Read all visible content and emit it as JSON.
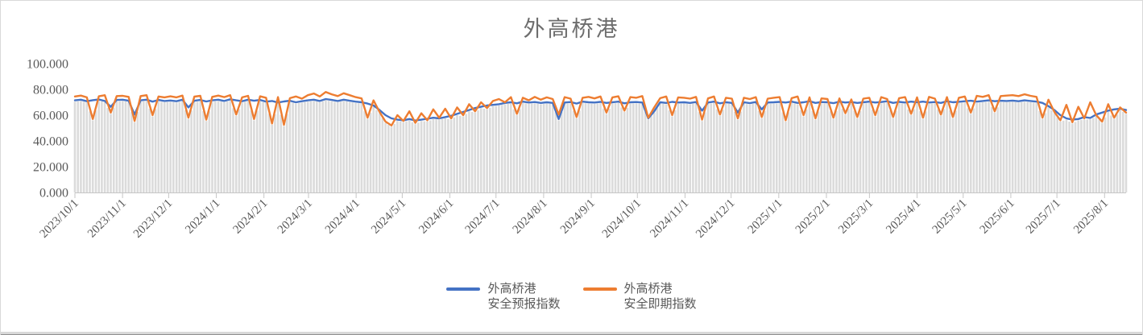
{
  "chart_data": {
    "type": "line",
    "title": "外高桥港",
    "legend_position": "bottom",
    "grid": false,
    "colors": {
      "forecast_line": "#4472C4",
      "spot_line": "#ED7D31",
      "drop_lines": "#DBDBDB",
      "axis": "#C6C6C6",
      "labels": "#595959",
      "title": "#6D6D6D",
      "border": "#D9D9D9"
    },
    "y_axis": {
      "min": 0,
      "max": 100,
      "ticks": [
        {
          "v": 0,
          "label": "0.000"
        },
        {
          "v": 20,
          "label": "20.000"
        },
        {
          "v": 40,
          "label": "40.000"
        },
        {
          "v": 60,
          "label": "60.000"
        },
        {
          "v": 80,
          "label": "80.000"
        },
        {
          "v": 100,
          "label": "100.000"
        }
      ]
    },
    "x_axis": {
      "start_label": "2023/10/1",
      "end_day": 684,
      "ticks": [
        {
          "day": 0,
          "label": "2023/10/1"
        },
        {
          "day": 31,
          "label": "2023/11/1"
        },
        {
          "day": 61,
          "label": "2023/12/1"
        },
        {
          "day": 92,
          "label": "2024/1/1"
        },
        {
          "day": 123,
          "label": "2024/2/1"
        },
        {
          "day": 152,
          "label": "2024/3/1"
        },
        {
          "day": 183,
          "label": "2024/4/1"
        },
        {
          "day": 213,
          "label": "2024/5/1"
        },
        {
          "day": 244,
          "label": "2024/6/1"
        },
        {
          "day": 274,
          "label": "2024/7/1"
        },
        {
          "day": 305,
          "label": "2024/8/1"
        },
        {
          "day": 336,
          "label": "2024/9/1"
        },
        {
          "day": 366,
          "label": "2024/10/1"
        },
        {
          "day": 397,
          "label": "2024/11/1"
        },
        {
          "day": 427,
          "label": "2024/12/1"
        },
        {
          "day": 458,
          "label": "2025/1/1"
        },
        {
          "day": 489,
          "label": "2025/2/1"
        },
        {
          "day": 517,
          "label": "2025/3/1"
        },
        {
          "day": 548,
          "label": "2025/4/1"
        },
        {
          "day": 578,
          "label": "2025/5/1"
        },
        {
          "day": 609,
          "label": "2025/6/1"
        },
        {
          "day": 639,
          "label": "2025/7/1"
        },
        {
          "day": 670,
          "label": "2025/8/1"
        }
      ]
    },
    "series": [
      {
        "name": "外高桥港安全预报指数",
        "legend_line1": "外高桥港",
        "legend_line2": "安全预报指数",
        "color": "#4472C4",
        "values": [
          71.5,
          72.0,
          70.8,
          71.6,
          72.2,
          71.0,
          66.5,
          71.8,
          72.0,
          71.2,
          60.5,
          71.5,
          72.0,
          70.5,
          71.8,
          71.0,
          71.4,
          70.8,
          72.0,
          66.0,
          71.2,
          71.8,
          70.6,
          71.5,
          72.0,
          71.0,
          72.3,
          71.5,
          70.8,
          72.0,
          71.2,
          71.8,
          70.5,
          71.0,
          69.8,
          70.6,
          71.2,
          70.0,
          70.8,
          71.5,
          72.0,
          71.0,
          72.5,
          71.8,
          71.0,
          72.0,
          71.2,
          70.5,
          70.0,
          69.0,
          67.5,
          64.0,
          60.0,
          57.5,
          56.5,
          56.0,
          57.0,
          55.8,
          56.5,
          57.2,
          58.0,
          57.5,
          58.5,
          59.5,
          61.0,
          62.5,
          64.0,
          65.5,
          66.5,
          67.5,
          68.0,
          68.5,
          69.5,
          70.0,
          69.2,
          70.5,
          69.8,
          70.2,
          69.5,
          70.0,
          69.5,
          57.0,
          69.8,
          70.2,
          69.0,
          70.5,
          70.0,
          69.8,
          70.3,
          69.5,
          70.0,
          70.5,
          69.2,
          70.0,
          70.2,
          69.8,
          57.5,
          63.0,
          70.0,
          69.5,
          70.3,
          69.8,
          70.0,
          69.5,
          70.2,
          63.5,
          69.8,
          70.5,
          69.2,
          70.0,
          69.5,
          62.0,
          70.0,
          69.3,
          70.2,
          64.5,
          69.8,
          70.0,
          70.3,
          69.8,
          70.5,
          69.5,
          70.0,
          70.8,
          69.5,
          70.2,
          70.0,
          69.3,
          70.5,
          69.8,
          70.2,
          69.5,
          70.0,
          70.5,
          69.8,
          70.2,
          70.8,
          69.5,
          70.3,
          69.8,
          70.5,
          70.0,
          70.5,
          69.8,
          70.2,
          69.5,
          70.8,
          70.0,
          70.4,
          70.8,
          71.2,
          70.5,
          71.0,
          71.5,
          70.8,
          71.2,
          71.0,
          71.3,
          70.8,
          71.5,
          71.0,
          70.5,
          69.5,
          67.0,
          64.0,
          60.0,
          57.5,
          56.5,
          57.0,
          58.5,
          57.8,
          60.5,
          62.0,
          63.5,
          64.5,
          65.0,
          64.0
        ]
      },
      {
        "name": "外高桥港安全即期指数",
        "legend_line1": "外高桥港",
        "legend_line2": "安全即期指数",
        "color": "#ED7D31",
        "values": [
          74.5,
          75.2,
          73.8,
          57.0,
          74.6,
          75.5,
          62.0,
          74.8,
          75.0,
          74.2,
          55.5,
          74.8,
          75.5,
          60.0,
          74.5,
          73.8,
          74.6,
          73.8,
          75.2,
          58.0,
          74.4,
          75.0,
          56.5,
          74.2,
          75.2,
          74.0,
          75.5,
          60.5,
          73.8,
          75.0,
          57.0,
          74.6,
          73.5,
          53.5,
          74.0,
          52.5,
          73.2,
          74.5,
          72.8,
          75.5,
          76.8,
          74.5,
          78.0,
          76.2,
          74.8,
          77.0,
          75.5,
          74.0,
          73.0,
          58.0,
          71.5,
          62.5,
          55.0,
          52.0,
          60.0,
          55.5,
          63.0,
          54.0,
          61.5,
          56.0,
          64.5,
          58.0,
          65.0,
          57.5,
          66.0,
          60.0,
          68.5,
          63.0,
          70.0,
          65.5,
          71.0,
          72.5,
          70.0,
          74.0,
          61.0,
          73.5,
          71.5,
          74.2,
          72.0,
          73.8,
          72.5,
          60.5,
          74.0,
          72.8,
          58.5,
          73.5,
          74.2,
          73.0,
          74.5,
          62.0,
          73.8,
          74.6,
          63.5,
          74.0,
          73.5,
          74.8,
          58.0,
          66.0,
          73.2,
          74.5,
          60.0,
          73.8,
          73.5,
          72.8,
          74.2,
          56.5,
          73.0,
          74.5,
          60.5,
          73.5,
          72.8,
          57.5,
          73.5,
          72.5,
          74.0,
          58.5,
          72.8,
          73.5,
          74.0,
          56.0,
          73.2,
          74.5,
          60.0,
          73.8,
          57.5,
          73.0,
          72.5,
          58.0,
          73.0,
          61.5,
          72.2,
          58.5,
          72.8,
          73.5,
          60.0,
          74.0,
          72.5,
          58.5,
          73.2,
          74.0,
          61.0,
          73.8,
          58.0,
          74.2,
          72.8,
          60.5,
          74.0,
          58.5,
          73.5,
          74.5,
          62.0,
          75.0,
          74.2,
          75.5,
          63.0,
          74.8,
          75.2,
          75.5,
          74.8,
          76.2,
          75.0,
          74.2,
          58.0,
          72.0,
          62.5,
          56.0,
          68.0,
          54.5,
          66.5,
          57.5,
          70.0,
          60.0,
          55.0,
          68.5,
          58.0,
          66.0,
          62.0
        ]
      }
    ]
  }
}
